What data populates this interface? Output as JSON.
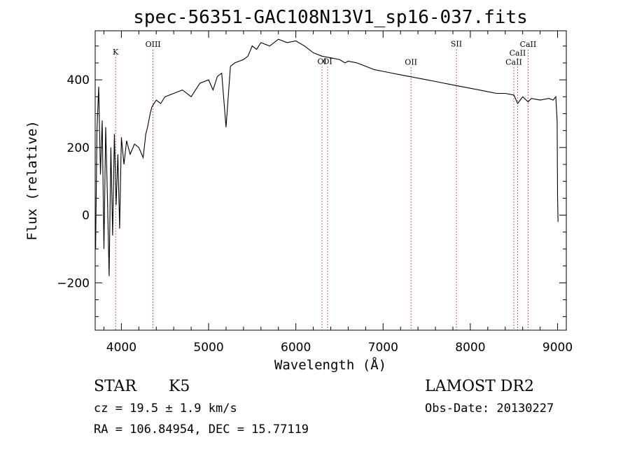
{
  "chart_data": {
    "type": "line",
    "title": "spec-56351-GAC108N13V1_sp16-037.fits",
    "xlabel": "Wavelength (Å)",
    "ylabel": "Flux (relative)",
    "xlim": [
      3700,
      9100
    ],
    "ylim": [
      -340,
      545
    ],
    "xticks": [
      4000,
      5000,
      6000,
      7000,
      8000,
      9000
    ],
    "xtick_labels": [
      "4000",
      "5000",
      "6000",
      "7000",
      "8000",
      "9000"
    ],
    "yticks": [
      -200,
      0,
      200,
      400
    ],
    "ytick_labels": [
      "−200",
      "0",
      "200",
      "400"
    ],
    "grid": false,
    "series": [
      {
        "color": "#000000",
        "x": [
          3705,
          3720,
          3740,
          3760,
          3780,
          3800,
          3820,
          3840,
          3860,
          3880,
          3900,
          3920,
          3940,
          3960,
          3980,
          4000,
          4030,
          4060,
          4100,
          4150,
          4200,
          4250,
          4280,
          4300,
          4330,
          4350,
          4400,
          4450,
          4500,
          4600,
          4700,
          4800,
          4900,
          5000,
          5050,
          5100,
          5150,
          5200,
          5250,
          5300,
          5400,
          5450,
          5500,
          5550,
          5600,
          5700,
          5800,
          5900,
          6000,
          6100,
          6200,
          6300,
          6400,
          6500,
          6563,
          6600,
          6700,
          6800,
          6900,
          7000,
          7100,
          7200,
          7300,
          7400,
          7500,
          7600,
          7700,
          7800,
          7900,
          8000,
          8100,
          8200,
          8300,
          8400,
          8500,
          8542,
          8600,
          8662,
          8700,
          8800,
          8900,
          8950,
          8980,
          8995,
          9000,
          9005
        ],
        "y": [
          -100,
          250,
          380,
          120,
          280,
          -100,
          260,
          60,
          -180,
          200,
          -60,
          240,
          30,
          180,
          -40,
          230,
          150,
          220,
          180,
          210,
          200,
          170,
          240,
          260,
          300,
          320,
          340,
          330,
          350,
          360,
          370,
          350,
          390,
          400,
          370,
          410,
          420,
          260,
          440,
          450,
          460,
          470,
          500,
          490,
          510,
          500,
          520,
          510,
          515,
          500,
          480,
          470,
          465,
          460,
          450,
          455,
          450,
          440,
          430,
          425,
          420,
          415,
          410,
          405,
          400,
          395,
          390,
          385,
          380,
          375,
          370,
          365,
          360,
          360,
          355,
          330,
          350,
          335,
          345,
          340,
          345,
          340,
          350,
          280,
          60,
          -20
        ]
      }
    ],
    "annotations": [
      {
        "label": "K",
        "x": 3934,
        "y_text": 475
      },
      {
        "label": "OIII",
        "x": 4363,
        "y_text": 497
      },
      {
        "label": "OI",
        "x": 6300,
        "y_text": 447
      },
      {
        "label": "OI",
        "x": 6364,
        "y_text": 447
      },
      {
        "label": "OII",
        "x": 7320,
        "y_text": 445
      },
      {
        "label": "SII",
        "x": 7840,
        "y_text": 498
      },
      {
        "label": "CaII",
        "x": 8498,
        "y_text": 445
      },
      {
        "label": "CaII",
        "x": 8542,
        "y_text": 472
      },
      {
        "label": "CaII",
        "x": 8662,
        "y_text": 497
      }
    ],
    "line_color": "#b22222"
  },
  "info": {
    "object_class": "STAR",
    "subclass": "K5",
    "survey": "LAMOST DR2",
    "cz": "cz = 19.5 ± 1.9 km/s",
    "obs_date": "Obs-Date: 20130227",
    "coords": "RA = 106.84954, DEC =  15.77119"
  }
}
